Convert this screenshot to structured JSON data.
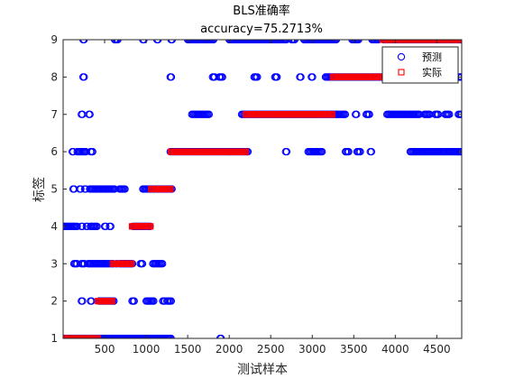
{
  "chart_data": {
    "type": "scatter",
    "title": "BLS准确率",
    "subtitle": "accuracy=75.2713%",
    "xlabel": "测试样本",
    "ylabel": "标签",
    "xlim": [
      0,
      4800
    ],
    "ylim": [
      1,
      9
    ],
    "xticks": [
      500,
      1000,
      1500,
      2000,
      2500,
      3000,
      3500,
      4000,
      4500
    ],
    "yticks": [
      1,
      2,
      3,
      4,
      5,
      6,
      7,
      8,
      9
    ],
    "grid": false,
    "legend_position": "top-right",
    "series": [
      {
        "name": "预测",
        "marker": "circle",
        "color": "#0000ff",
        "runs": [
          [
            9,
            240,
            260
          ],
          [
            9,
            620,
            660
          ],
          [
            9,
            960,
            980
          ],
          [
            9,
            1130,
            1150
          ],
          [
            9,
            1300,
            1320
          ],
          [
            9,
            1500,
            1820
          ],
          [
            9,
            2000,
            2700
          ],
          [
            9,
            2750,
            2800
          ],
          [
            9,
            2900,
            3300
          ],
          [
            9,
            3480,
            3560
          ],
          [
            9,
            3720,
            3800
          ],
          [
            9,
            3860,
            4800
          ],
          [
            8,
            240,
            260
          ],
          [
            8,
            1290,
            1310
          ],
          [
            8,
            1800,
            1830
          ],
          [
            8,
            1880,
            1920
          ],
          [
            8,
            2300,
            2350
          ],
          [
            8,
            2550,
            2580
          ],
          [
            8,
            2850,
            2870
          ],
          [
            8,
            2990,
            3010
          ],
          [
            8,
            3160,
            4400
          ],
          [
            8,
            4450,
            4500
          ],
          [
            8,
            4760,
            4800
          ],
          [
            7,
            220,
            240
          ],
          [
            7,
            310,
            330
          ],
          [
            7,
            1550,
            1760
          ],
          [
            7,
            2150,
            3400
          ],
          [
            7,
            3520,
            3540
          ],
          [
            7,
            3650,
            3700
          ],
          [
            7,
            3900,
            4300
          ],
          [
            7,
            4350,
            4420
          ],
          [
            7,
            4480,
            4520
          ],
          [
            7,
            4600,
            4660
          ],
          [
            7,
            4760,
            4800
          ],
          [
            6,
            110,
            130
          ],
          [
            6,
            170,
            280
          ],
          [
            6,
            330,
            360
          ],
          [
            6,
            1290,
            2230
          ],
          [
            6,
            2680,
            2700
          ],
          [
            6,
            2950,
            3130
          ],
          [
            6,
            3400,
            3440
          ],
          [
            6,
            3540,
            3580
          ],
          [
            6,
            3700,
            3720
          ],
          [
            6,
            4180,
            4800
          ],
          [
            5,
            120,
            140
          ],
          [
            5,
            200,
            220
          ],
          [
            5,
            260,
            280
          ],
          [
            5,
            320,
            620
          ],
          [
            5,
            680,
            750
          ],
          [
            5,
            960,
            1320
          ],
          [
            4,
            0,
            180
          ],
          [
            4,
            220,
            240
          ],
          [
            4,
            280,
            300
          ],
          [
            4,
            330,
            420
          ],
          [
            4,
            500,
            520
          ],
          [
            4,
            560,
            580
          ],
          [
            4,
            840,
            1050
          ],
          [
            3,
            130,
            170
          ],
          [
            3,
            220,
            260
          ],
          [
            3,
            300,
            560
          ],
          [
            3,
            580,
            610
          ],
          [
            3,
            640,
            660
          ],
          [
            3,
            680,
            840
          ],
          [
            3,
            930,
            960
          ],
          [
            3,
            1080,
            1200
          ],
          [
            2,
            220,
            240
          ],
          [
            2,
            330,
            350
          ],
          [
            2,
            430,
            620
          ],
          [
            2,
            830,
            860
          ],
          [
            2,
            1000,
            1100
          ],
          [
            2,
            1200,
            1230
          ],
          [
            2,
            1250,
            1310
          ],
          [
            1,
            0,
            1310
          ],
          [
            1,
            1890,
            1910
          ]
        ]
      },
      {
        "name": "实际",
        "marker": "square",
        "color": "#ff0000",
        "runs": [
          [
            1,
            0,
            420
          ],
          [
            2,
            420,
            600
          ],
          [
            3,
            600,
            830
          ],
          [
            4,
            830,
            1060
          ],
          [
            5,
            1060,
            1300
          ],
          [
            6,
            1300,
            2200
          ],
          [
            7,
            2200,
            3250
          ],
          [
            8,
            3250,
            3850
          ],
          [
            9,
            3850,
            4800
          ]
        ]
      }
    ]
  }
}
